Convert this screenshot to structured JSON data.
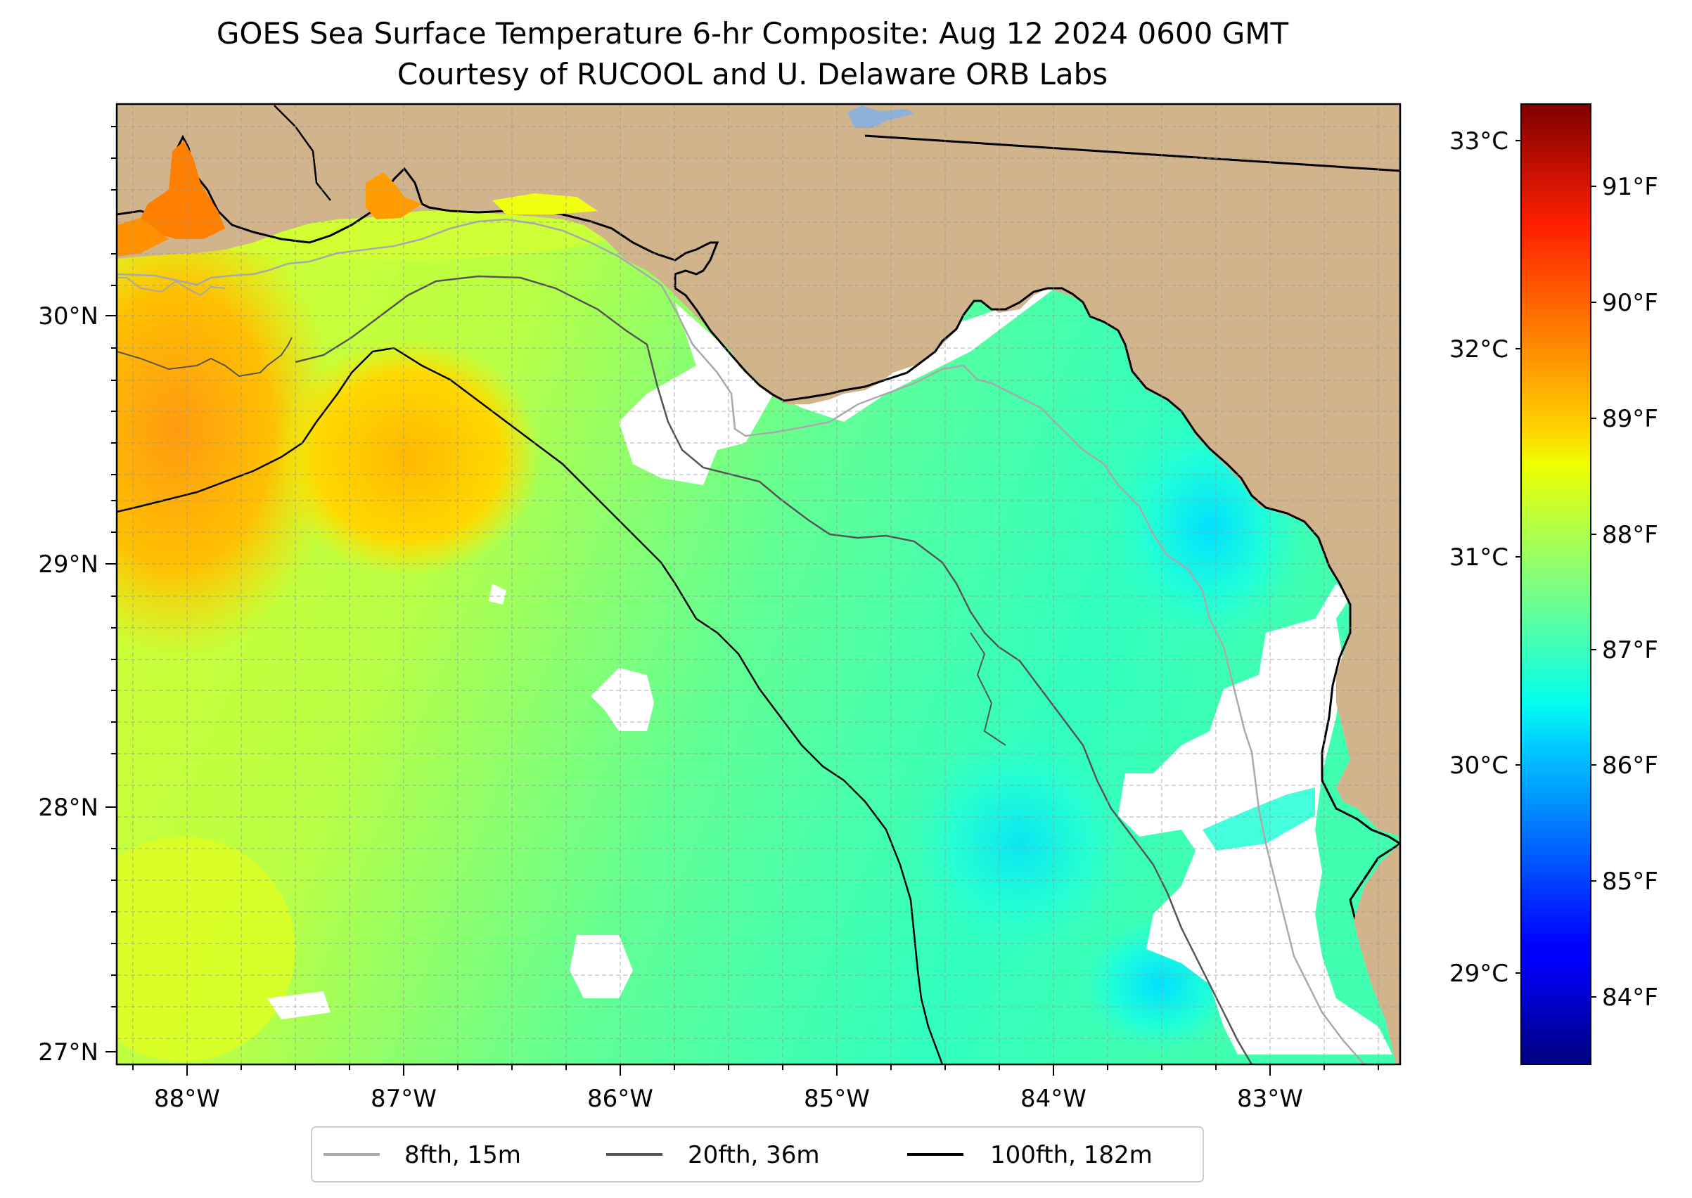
{
  "figure": {
    "title_line1": "GOES Sea Surface Temperature 6-hr Composite: Aug 12 2024 0600 GMT",
    "title_line2": "Courtesy of RUCOOL and U. Delaware ORB Labs"
  },
  "map": {
    "lon_ticks": [
      "88°W",
      "87°W",
      "86°W",
      "85°W",
      "84°W",
      "83°W"
    ],
    "lat_ticks": [
      "30°N",
      "29°N",
      "28°N",
      "27°N"
    ],
    "land_color": "#d2b48c",
    "no_data_color": "#ffffff"
  },
  "colorbar": {
    "celsius_ticks": [
      "33°C",
      "32°C",
      "31°C",
      "30°C",
      "29°C"
    ],
    "fahrenheit_ticks": [
      "91°F",
      "90°F",
      "89°F",
      "88°F",
      "87°F",
      "86°F",
      "85°F",
      "84°F"
    ],
    "colormap": "jet",
    "range_f": [
      83.4,
      91.6
    ]
  },
  "legend": {
    "items": [
      {
        "label": "8fth, 15m",
        "color": "#a9a9a9"
      },
      {
        "label": "20fth, 36m",
        "color": "#555555"
      },
      {
        "label": "100fth, 182m",
        "color": "#000000"
      }
    ]
  }
}
